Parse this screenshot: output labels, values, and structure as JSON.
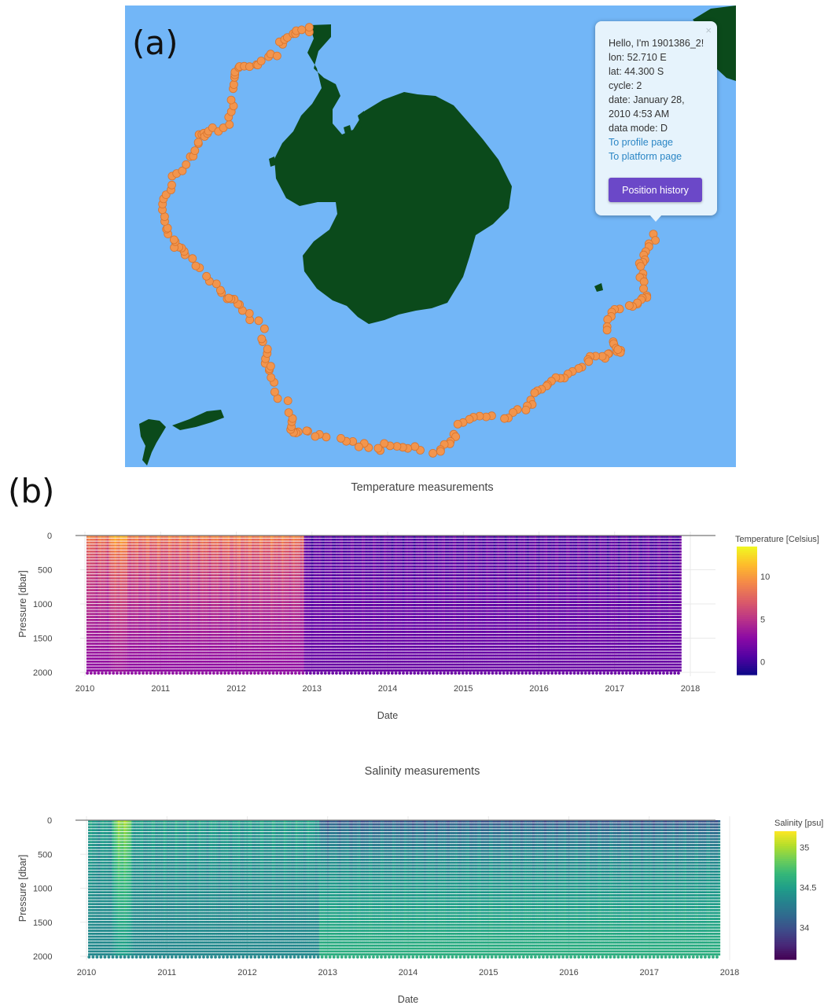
{
  "panel_a": {
    "label": "(a)",
    "popup": {
      "close_glyph": "×",
      "greeting": "Hello, I'm 1901386_2!",
      "lon": "lon: 52.710 E",
      "lat": "lat: 44.300 S",
      "cycle": "cycle: 2",
      "date_line1": "date: January 28,",
      "date_line2": "2010 4:53 AM",
      "data_mode": "data mode: D",
      "profile_link": "To profile page",
      "platform_link": "To platform page",
      "history_button": "Position history"
    },
    "colors": {
      "ocean": "#72b6f7",
      "land": "#0b4a1b",
      "marker": "#f2954d",
      "marker_stroke": "#d8742e"
    },
    "icons": {
      "close": "close-icon"
    }
  },
  "panel_b": {
    "label": "(b)"
  },
  "chart_data": [
    {
      "type": "heatmap",
      "title": "Temperature measurements",
      "xlabel": "Date",
      "ylabel": "Pressure [dbar]",
      "x_ticks": [
        "2010",
        "2011",
        "2012",
        "2013",
        "2014",
        "2015",
        "2016",
        "2017",
        "2018"
      ],
      "y_ticks": [
        "0",
        "500",
        "1000",
        "1500",
        "2000"
      ],
      "xlim": [
        2010.0,
        2018.0
      ],
      "ylim": [
        2000,
        0
      ],
      "data_x_range": [
        2010.02,
        2017.88
      ],
      "data_y_range": [
        0,
        2000
      ],
      "colorbar": {
        "title": "Temperature [Celsius]",
        "ticks": [
          "10",
          "5",
          "0"
        ],
        "range": [
          -1.5,
          13.5
        ],
        "colormap": "plasma"
      },
      "profiles": [
        {
          "date_start": 2010.0,
          "date_end": 2012.9,
          "surface_value": 10.5,
          "deep_value": 3.0,
          "note": ""
        },
        {
          "date_start": 2010.3,
          "date_end": 2010.6,
          "surface_value": 13.0,
          "deep_value": 4.5,
          "note": ""
        },
        {
          "date_start": 2012.9,
          "date_end": 2017.88,
          "surface_value": 0.5,
          "deep_value": 1.5,
          "note": ""
        }
      ],
      "grid": true,
      "legend": "colorbar-right"
    },
    {
      "type": "heatmap",
      "title": "Salinity measurements",
      "xlabel": "Date",
      "ylabel": "Pressure [dbar]",
      "x_ticks": [
        "2010",
        "2011",
        "2012",
        "2013",
        "2014",
        "2015",
        "2016",
        "2017",
        "2018"
      ],
      "y_ticks": [
        "0",
        "500",
        "1000",
        "1500",
        "2000"
      ],
      "xlim": [
        2010.0,
        2018.0
      ],
      "ylim": [
        2000,
        0
      ],
      "data_x_range": [
        2010.02,
        2017.88
      ],
      "data_y_range": [
        0,
        2000
      ],
      "colorbar": {
        "title": "Salinity [psu]",
        "ticks": [
          "35",
          "34.5",
          "34"
        ],
        "range": [
          33.6,
          35.2
        ],
        "colormap": "viridis"
      },
      "profiles": [
        {
          "date_start": 2010.0,
          "date_end": 2012.9,
          "surface_value": 34.5,
          "deep_value": 34.35,
          "note": ""
        },
        {
          "date_start": 2010.3,
          "date_end": 2010.6,
          "surface_value": 35.1,
          "deep_value": 34.7,
          "note": ""
        },
        {
          "date_start": 2012.9,
          "date_end": 2017.88,
          "surface_value": 33.9,
          "deep_value": 34.6,
          "note": ""
        }
      ],
      "grid": true,
      "legend": "colorbar-right"
    }
  ]
}
